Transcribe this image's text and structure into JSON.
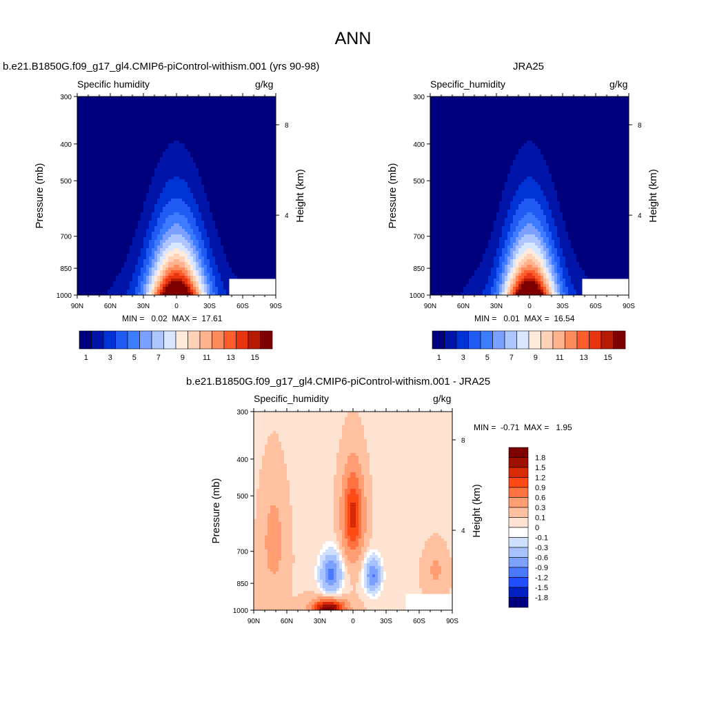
{
  "page_title": "ANN",
  "colors": {
    "sequential": [
      "#00007f",
      "#0015a8",
      "#0033d6",
      "#1f5af2",
      "#3d7bff",
      "#7aa1ff",
      "#adc6ff",
      "#d8e6ff",
      "#ffeadc",
      "#ffd2b8",
      "#ffb28e",
      "#ff8a5e",
      "#ff5d2c",
      "#e83410",
      "#b51a05",
      "#7f0000"
    ],
    "diverging": [
      "#00007f",
      "#0020c2",
      "#1f4dff",
      "#4a78ff",
      "#7ba0ff",
      "#a8c2ff",
      "#cfe0ff",
      "#ffffff",
      "#ffe3d2",
      "#ffc1a0",
      "#ff9d73",
      "#ff7343",
      "#ff4a14",
      "#d72a05",
      "#9e1000",
      "#7f0000"
    ]
  },
  "chart_data": [
    {
      "type": "heatmap",
      "title": "b.e21.B1850G.f09_g17_gl4.CMIP6-piControl-withism.001 (yrs 90-98)",
      "left_string": "Specific humidity",
      "right_string": "g/kg",
      "xlabel": "",
      "ylabel": "Pressure (mb)",
      "ylabel_right": "Height (km)",
      "x_ticks": [
        "90N",
        "60N",
        "30N",
        "0",
        "30S",
        "60S",
        "90S"
      ],
      "y_ticks": [
        "300",
        "400",
        "500",
        "700",
        "850",
        "1000"
      ],
      "y_ticks_right": [
        "8",
        "4"
      ],
      "stats": "MIN =   0.02  MAX =  17.61",
      "min": 0.02,
      "max": 17.61,
      "colorbar_labels": [
        "1",
        "3",
        "5",
        "7",
        "9",
        "11",
        "13",
        "15"
      ],
      "levels": [
        1,
        2,
        3,
        4,
        5,
        6,
        7,
        8,
        9,
        10,
        11,
        12,
        13,
        14,
        15
      ],
      "peak_latitude": 0,
      "peak_value": 17.61
    },
    {
      "type": "heatmap",
      "title": "JRA25",
      "left_string": "Specific_humidity",
      "right_string": "g/kg",
      "xlabel": "",
      "ylabel": "Pressure (mb)",
      "ylabel_right": "Height (km)",
      "x_ticks": [
        "90N",
        "60N",
        "30N",
        "0",
        "30S",
        "60S",
        "90S"
      ],
      "y_ticks": [
        "300",
        "400",
        "500",
        "700",
        "850",
        "1000"
      ],
      "y_ticks_right": [
        "8",
        "4"
      ],
      "stats": "MIN =   0.01  MAX =  16.54",
      "min": 0.01,
      "max": 16.54,
      "colorbar_labels": [
        "1",
        "3",
        "5",
        "7",
        "9",
        "11",
        "13",
        "15"
      ],
      "levels": [
        1,
        2,
        3,
        4,
        5,
        6,
        7,
        8,
        9,
        10,
        11,
        12,
        13,
        14,
        15
      ],
      "peak_latitude": 0,
      "peak_value": 16.54
    },
    {
      "type": "heatmap",
      "title": "b.e21.B1850G.f09_g17_gl4.CMIP6-piControl-withism.001 - JRA25",
      "left_string": "Specific_humidity",
      "right_string": "g/kg",
      "xlabel": "",
      "ylabel": "Pressure (mb)",
      "ylabel_right": "Height (km)",
      "x_ticks": [
        "90N",
        "60N",
        "30N",
        "0",
        "30S",
        "60S",
        "90S"
      ],
      "y_ticks": [
        "300",
        "400",
        "500",
        "700",
        "850",
        "1000"
      ],
      "y_ticks_right": [
        "8",
        "4"
      ],
      "stats": "MIN =  -0.71  MAX =   1.95",
      "min": -0.71,
      "max": 1.95,
      "colorbar_labels": [
        "1.8",
        "1.5",
        "1.2",
        "0.9",
        "0.6",
        "0.3",
        "0.1",
        "0",
        "-0.1",
        "-0.3",
        "-0.6",
        "-0.9",
        "-1.2",
        "-1.5",
        "-1.8"
      ],
      "levels": [
        -1.8,
        -1.5,
        -1.2,
        -0.9,
        -0.6,
        -0.3,
        -0.1,
        0,
        0.1,
        0.3,
        0.6,
        0.9,
        1.2,
        1.5,
        1.8
      ]
    }
  ]
}
